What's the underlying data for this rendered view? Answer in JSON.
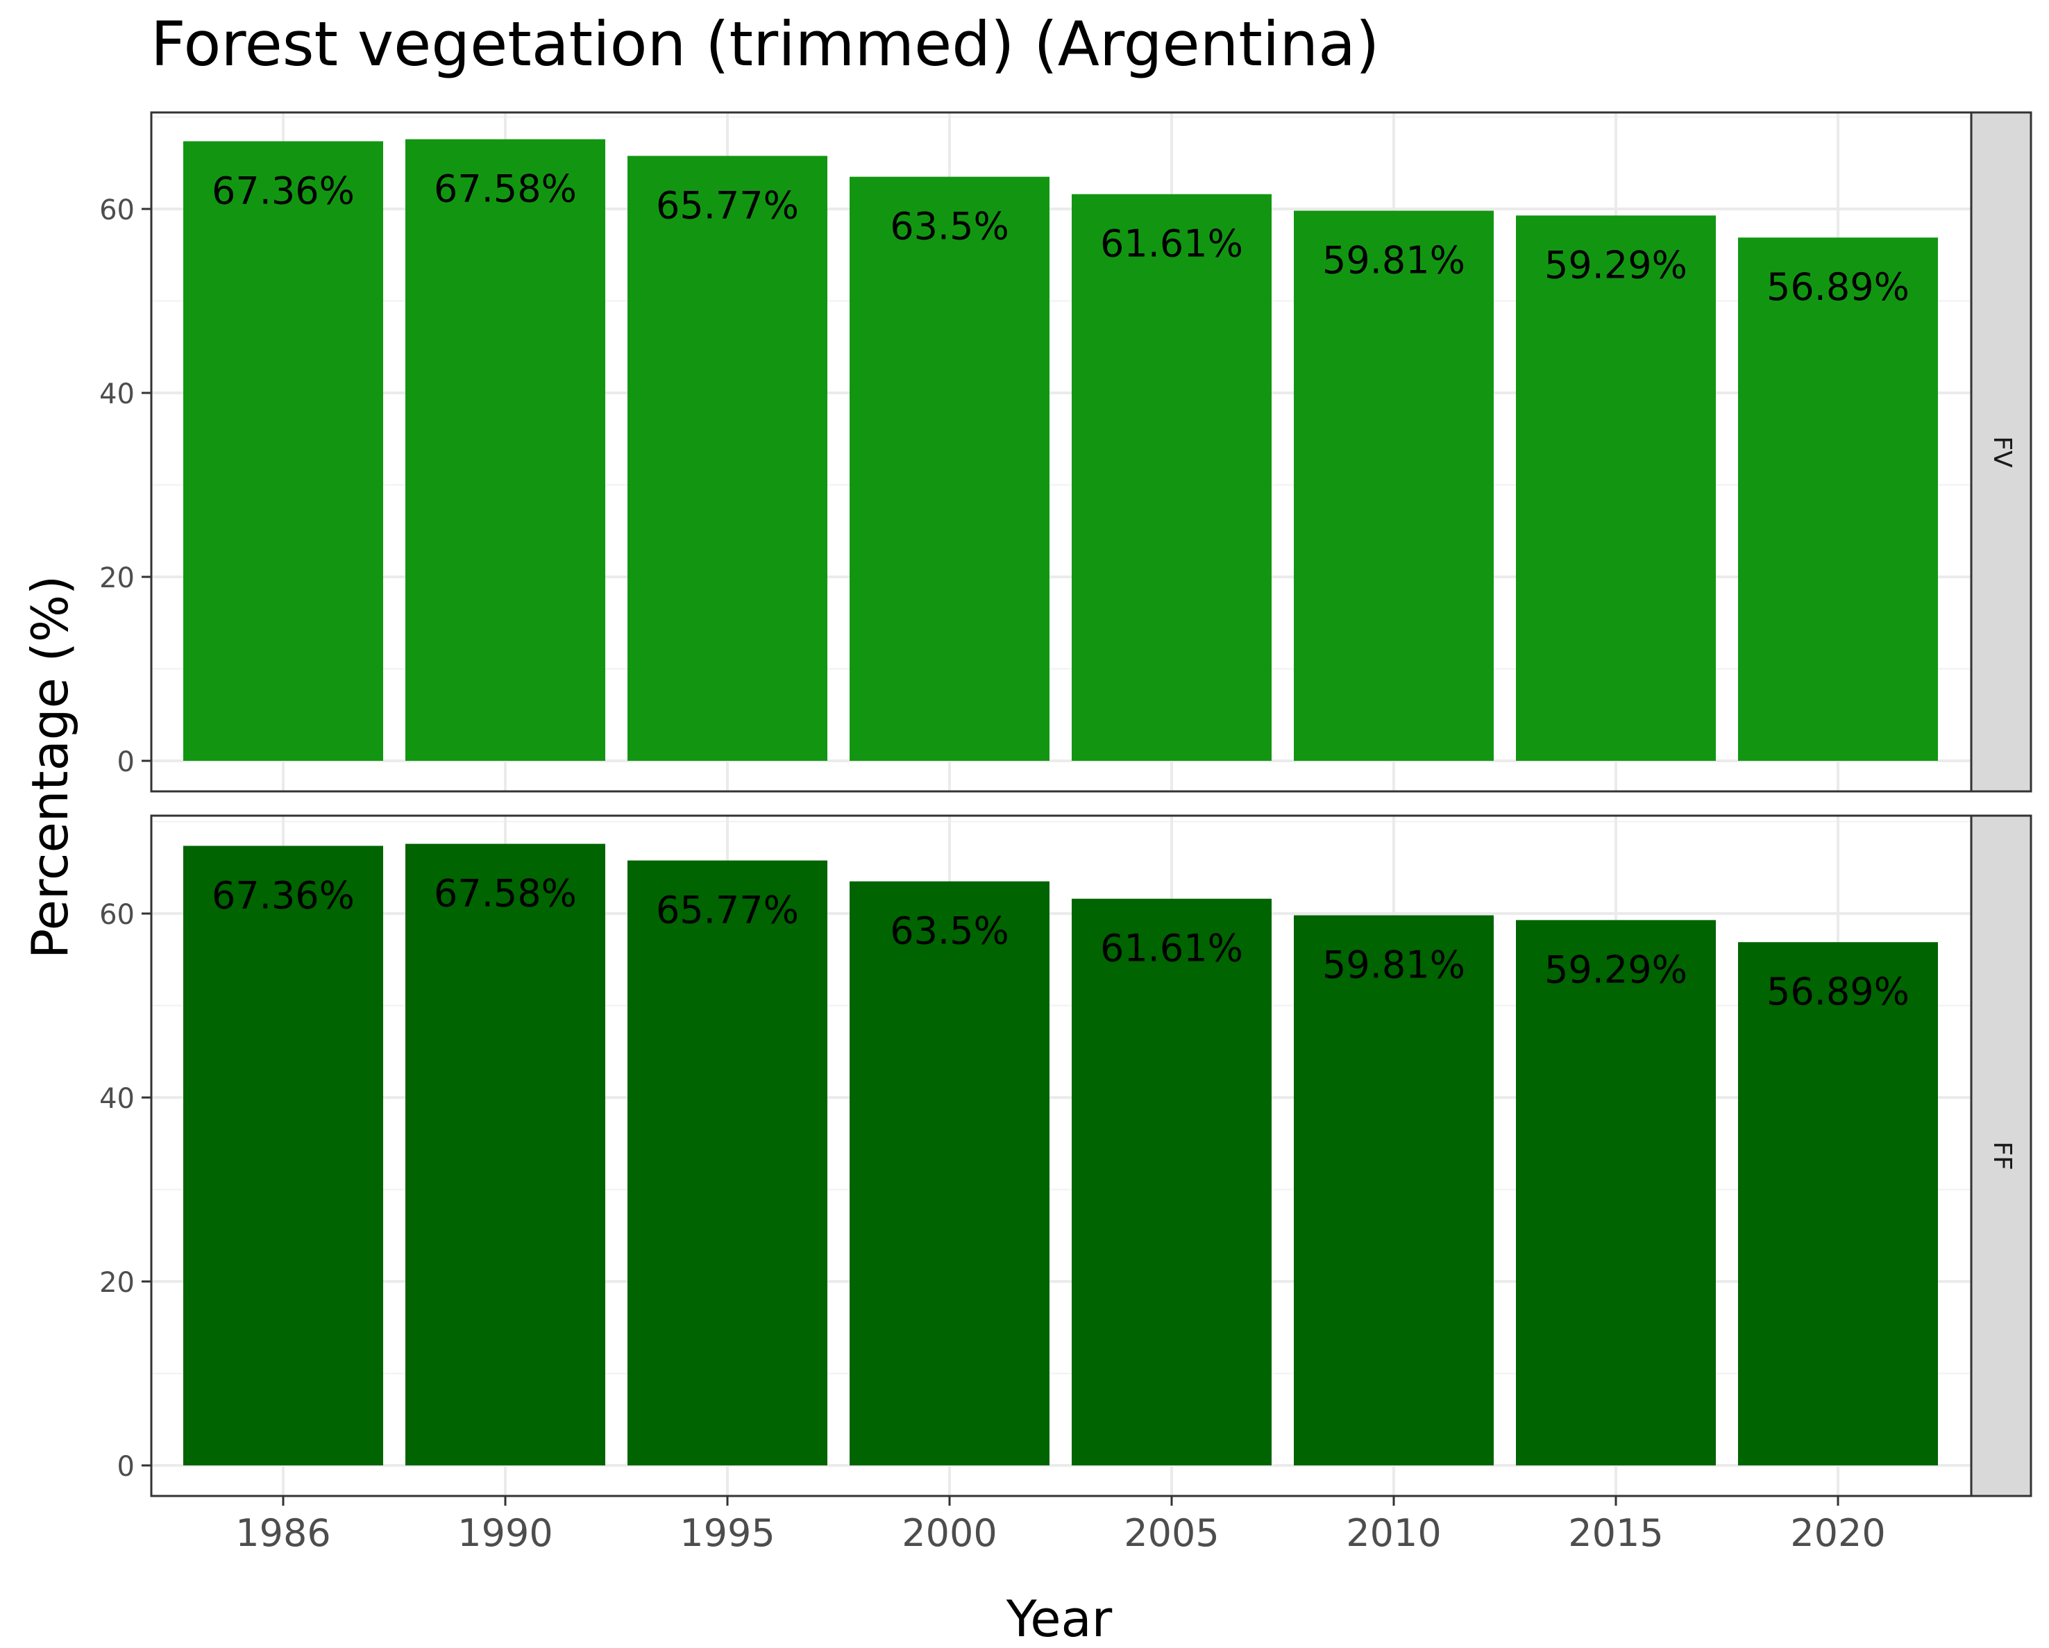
{
  "chart_data": {
    "type": "bar",
    "title": "Forest vegetation (trimmed) (Argentina)",
    "xlabel": "Year",
    "ylabel": "Percentage (%)",
    "categories": [
      "1986",
      "1990",
      "1995",
      "2000",
      "2005",
      "2010",
      "2015",
      "2020"
    ],
    "ylim": [
      0,
      70.9
    ],
    "yticks": [
      0,
      20,
      40,
      60
    ],
    "grid": true,
    "facets": [
      {
        "strip_label": "FV",
        "color": "#129612",
        "values": [
          67.36,
          67.58,
          65.77,
          63.5,
          61.61,
          59.81,
          59.29,
          56.89
        ],
        "labels": [
          "67.36%",
          "67.58%",
          "65.77%",
          "63.5%",
          "61.61%",
          "59.81%",
          "59.29%",
          "56.89%"
        ]
      },
      {
        "strip_label": "FF",
        "color": "#006400",
        "values": [
          67.36,
          67.58,
          65.77,
          63.5,
          61.61,
          59.81,
          59.29,
          56.89
        ],
        "labels": [
          "67.36%",
          "67.58%",
          "65.77%",
          "63.5%",
          "61.61%",
          "59.81%",
          "59.29%",
          "56.89%"
        ]
      }
    ]
  }
}
